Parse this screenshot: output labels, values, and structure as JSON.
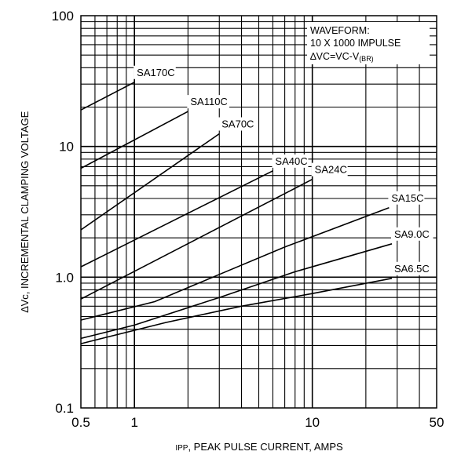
{
  "chart_data": {
    "type": "line",
    "title": "",
    "xlabel": {
      "sub": "IPP",
      "main": ", PEAK PULSE CURRENT, AMPS"
    },
    "ylabel": {
      "delta": "∆",
      "main": "Vc, INCREMENTAL CLAMPING VOLTAGE"
    },
    "x_scale": "log",
    "y_scale": "log",
    "xlim": [
      0.5,
      50
    ],
    "ylim": [
      0.1,
      100
    ],
    "grid": true,
    "x_ticks": [
      {
        "value": 0.5,
        "label": "0.5"
      },
      {
        "value": 1,
        "label": "1"
      },
      {
        "value": 10,
        "label": "10"
      },
      {
        "value": 50,
        "label": "50"
      }
    ],
    "y_ticks": [
      {
        "value": 0.1,
        "label": "0.1"
      },
      {
        "value": 1,
        "label": "1.0"
      },
      {
        "value": 10,
        "label": "10"
      },
      {
        "value": 100,
        "label": "100"
      }
    ],
    "annotation": {
      "lines": [
        "WAVEFORM:",
        "10 X 1000 IMPULSE"
      ],
      "formula": {
        "main": "∆VC=VC-V",
        "sub": "(BR)"
      }
    },
    "series": [
      {
        "name": "SA170C",
        "x": [
          0.5,
          1.0
        ],
        "y": [
          19,
          31
        ]
      },
      {
        "name": "SA110C",
        "x": [
          0.5,
          2.0
        ],
        "y": [
          6.8,
          18.5
        ]
      },
      {
        "name": "SA70C",
        "x": [
          0.5,
          3.0
        ],
        "y": [
          2.3,
          12.5
        ]
      },
      {
        "name": "SA40C",
        "x": [
          0.5,
          6.0
        ],
        "y": [
          1.2,
          6.5
        ]
      },
      {
        "name": "SA24C",
        "x": [
          0.5,
          10.0
        ],
        "y": [
          0.68,
          5.6
        ]
      },
      {
        "name": "SA15C",
        "x": [
          0.5,
          1.3,
          3.0,
          7.0,
          27.0
        ],
        "y": [
          0.47,
          0.65,
          1.05,
          1.7,
          3.4
        ]
      },
      {
        "name": "SA9.0C",
        "x": [
          0.5,
          1.0,
          3.0,
          8.0,
          28.0
        ],
        "y": [
          0.34,
          0.43,
          0.7,
          1.1,
          1.8
        ]
      },
      {
        "name": "SA6.5C",
        "x": [
          0.5,
          1.5,
          4.0,
          10.0,
          28.0
        ],
        "y": [
          0.31,
          0.45,
          0.6,
          0.75,
          0.98
        ]
      }
    ]
  }
}
